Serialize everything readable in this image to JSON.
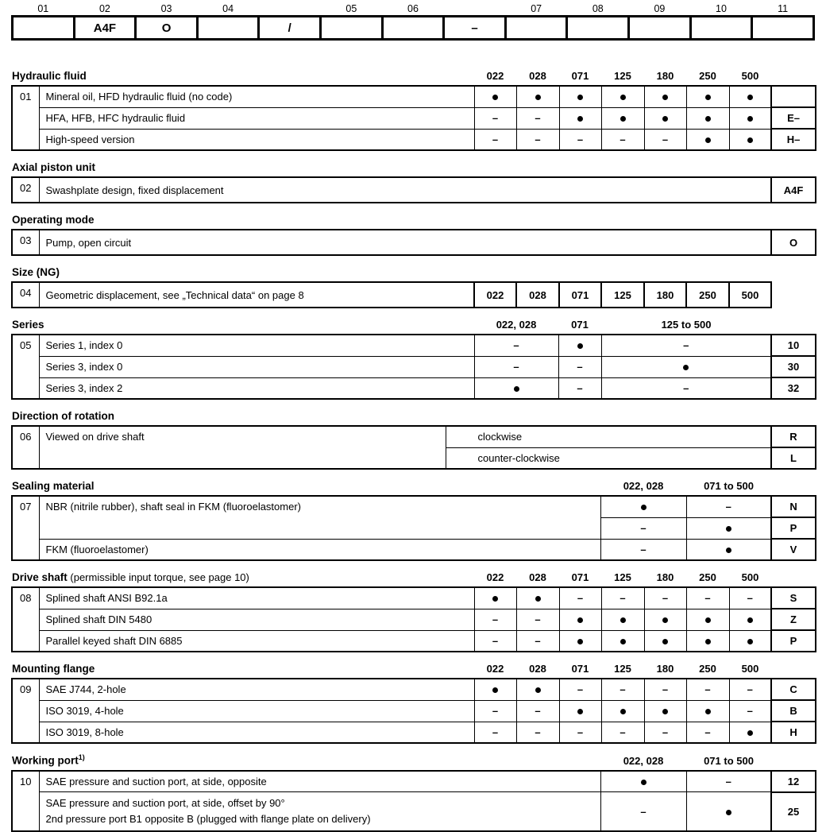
{
  "page": {
    "background": "#ffffff",
    "ink": "#000000"
  },
  "symbols": {
    "dot": "●",
    "dash": "–"
  },
  "order_code_bar": {
    "cells": [
      {
        "label": "01",
        "value": ""
      },
      {
        "label": "02",
        "value": "A4F"
      },
      {
        "label": "03",
        "value": "O"
      },
      {
        "label": "04",
        "value": ""
      },
      {
        "label": "",
        "value": "/"
      },
      {
        "label": "05",
        "value": ""
      },
      {
        "label": "06",
        "value": ""
      },
      {
        "label": "",
        "value": "–"
      },
      {
        "label": "07",
        "value": ""
      },
      {
        "label": "08",
        "value": ""
      },
      {
        "label": "09",
        "value": ""
      },
      {
        "label": "10",
        "value": ""
      },
      {
        "label": "11",
        "value": ""
      }
    ]
  },
  "sections": [
    {
      "number": "01",
      "title": "Hydraulic fluid",
      "layout": "seven",
      "col_headers": [
        "022",
        "028",
        "071",
        "125",
        "180",
        "250",
        "500"
      ],
      "rows": [
        {
          "desc": "Mineral oil, HFD hydraulic fluid (no code)",
          "marks": [
            "dot",
            "dot",
            "dot",
            "dot",
            "dot",
            "dot",
            "dot"
          ],
          "code": ""
        },
        {
          "desc": "HFA, HFB, HFC hydraulic fluid",
          "marks": [
            "dash",
            "dash",
            "dot",
            "dot",
            "dot",
            "dot",
            "dot"
          ],
          "code": "E–"
        },
        {
          "desc": "High-speed version",
          "marks": [
            "dash",
            "dash",
            "dash",
            "dash",
            "dash",
            "dot",
            "dot"
          ],
          "code": "H–"
        }
      ]
    },
    {
      "number": "02",
      "title": "Axial piston unit",
      "layout": "simple",
      "rows": [
        {
          "desc": "Swashplate design, fixed displacement",
          "code": "A4F"
        }
      ]
    },
    {
      "number": "03",
      "title": "Operating mode",
      "layout": "simple",
      "rows": [
        {
          "desc": "Pump, open circuit",
          "code": "O"
        }
      ]
    },
    {
      "number": "04",
      "title": "Size (NG)",
      "layout": "sizes",
      "rows": [
        {
          "desc": "Geometric displacement, see „Technical data“ on page 8",
          "sizes": [
            "022",
            "028",
            "071",
            "125",
            "180",
            "250",
            "500"
          ]
        }
      ]
    },
    {
      "number": "05",
      "title": "Series",
      "layout": "series",
      "col_headers": [
        "022, 028",
        "071",
        "125 to 500"
      ],
      "rows": [
        {
          "desc": "Series 1, index 0",
          "marks": [
            "dash",
            "dot",
            "dash"
          ],
          "code": "10"
        },
        {
          "desc": "Series 3, index 0",
          "marks": [
            "dash",
            "dash",
            "dot"
          ],
          "code": "30"
        },
        {
          "desc": "Series 3, index 2",
          "marks": [
            "dot",
            "dash",
            "dash"
          ],
          "code": "32"
        }
      ]
    },
    {
      "number": "06",
      "title": "Direction of rotation",
      "layout": "rotation",
      "rows": [
        {
          "desc": "Viewed on drive shaft",
          "desc_rowspan": 2,
          "value": "clockwise",
          "code": "R"
        },
        {
          "value": "counter-clockwise",
          "code": "L"
        }
      ]
    },
    {
      "number": "07",
      "title": "Sealing material",
      "layout": "two",
      "col_headers": [
        "022, 028",
        "071 to 500"
      ],
      "rows": [
        {
          "desc": "NBR (nitrile rubber), shaft seal in FKM (fluoroelastomer)",
          "desc_rowspan": 2,
          "marks": [
            "dot",
            "dash"
          ],
          "code": "N"
        },
        {
          "marks": [
            "dash",
            "dot"
          ],
          "code": "P"
        },
        {
          "desc": "FKM (fluoroelastomer)",
          "marks": [
            "dash",
            "dot"
          ],
          "code": "V"
        }
      ]
    },
    {
      "number": "08",
      "title": "Drive shaft",
      "note": "(permissible input torque, see page 10)",
      "layout": "seven",
      "col_headers": [
        "022",
        "028",
        "071",
        "125",
        "180",
        "250",
        "500"
      ],
      "rows": [
        {
          "desc": "Splined shaft ANSI B92.1a",
          "marks": [
            "dot",
            "dot",
            "dash",
            "dash",
            "dash",
            "dash",
            "dash"
          ],
          "code": "S"
        },
        {
          "desc": "Splined shaft DIN 5480",
          "marks": [
            "dash",
            "dash",
            "dot",
            "dot",
            "dot",
            "dot",
            "dot"
          ],
          "code": "Z"
        },
        {
          "desc": "Parallel keyed shaft DIN 6885",
          "marks": [
            "dash",
            "dash",
            "dot",
            "dot",
            "dot",
            "dot",
            "dot"
          ],
          "code": "P"
        }
      ]
    },
    {
      "number": "09",
      "title": "Mounting flange",
      "layout": "seven",
      "col_headers": [
        "022",
        "028",
        "071",
        "125",
        "180",
        "250",
        "500"
      ],
      "rows": [
        {
          "desc": "SAE J744, 2-hole",
          "marks": [
            "dot",
            "dot",
            "dash",
            "dash",
            "dash",
            "dash",
            "dash"
          ],
          "code": "C"
        },
        {
          "desc": "ISO 3019, 4-hole",
          "marks": [
            "dash",
            "dash",
            "dot",
            "dot",
            "dot",
            "dot",
            "dash"
          ],
          "code": "B"
        },
        {
          "desc": "ISO 3019, 8-hole",
          "marks": [
            "dash",
            "dash",
            "dash",
            "dash",
            "dash",
            "dash",
            "dot"
          ],
          "code": "H"
        }
      ]
    },
    {
      "number": "10",
      "title": "Working port",
      "title_sup": "1)",
      "layout": "two",
      "col_headers": [
        "022, 028",
        "071 to 500"
      ],
      "rows": [
        {
          "desc": "SAE pressure and suction port, at side, opposite",
          "marks": [
            "dot",
            "dash"
          ],
          "code": "12"
        },
        {
          "desc": [
            "SAE pressure and suction port, at side, offset by 90°",
            "2nd pressure port B1 opposite B (plugged with flange plate on delivery)"
          ],
          "marks": [
            "dash",
            "dot"
          ],
          "code": "25"
        }
      ]
    }
  ]
}
